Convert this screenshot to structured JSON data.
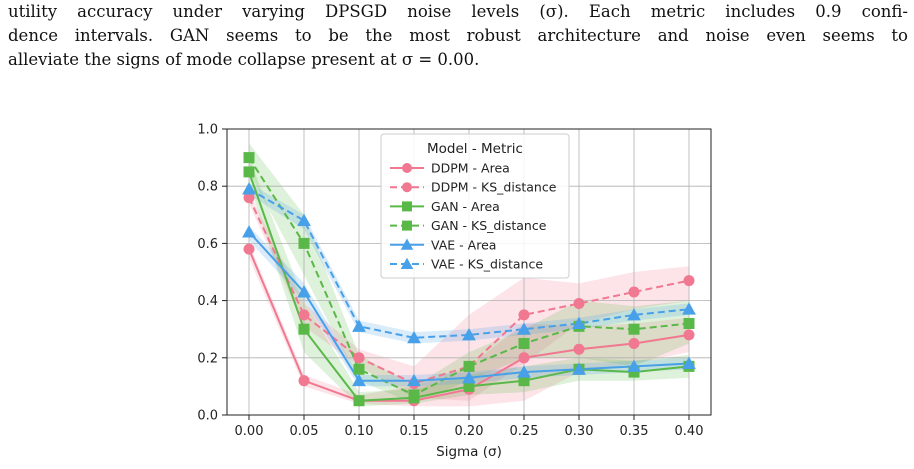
{
  "caption": {
    "line1": "utility accuracy under varying DPSGD noise levels (σ). Each metric includes 0.9 confi-",
    "line2": "dence intervals. GAN seems to be the most robust architecture and noise even seems to",
    "line3": "alleviate the signs of mode collapse present at σ = 0.00."
  },
  "chart_data": {
    "type": "line",
    "xlabel": "Sigma (σ)",
    "ylabel": "",
    "x": [
      0.0,
      0.05,
      0.1,
      0.15,
      0.2,
      0.25,
      0.3,
      0.35,
      0.4
    ],
    "x_tick_labels": [
      "0.00",
      "0.05",
      "0.10",
      "0.15",
      "0.20",
      "0.25",
      "0.30",
      "0.35",
      "0.40"
    ],
    "xlim": [
      -0.02,
      0.42
    ],
    "ylim": [
      0.0,
      1.0
    ],
    "y_ticks": [
      0.0,
      0.2,
      0.4,
      0.6,
      0.8,
      1.0
    ],
    "y_tick_labels": [
      "0.0",
      "0.2",
      "0.4",
      "0.6",
      "0.8",
      "1.0"
    ],
    "grid": true,
    "legend": {
      "title": "Model - Metric",
      "placement": "top-center"
    },
    "series": [
      {
        "name": "DDPM - Area",
        "color": "#f07890",
        "dash": "solid",
        "marker": "circle",
        "values": [
          0.58,
          0.12,
          0.05,
          0.05,
          0.09,
          0.2,
          0.23,
          0.25,
          0.28
        ],
        "ci_low": [
          0.55,
          0.1,
          0.04,
          0.03,
          0.03,
          0.05,
          0.15,
          0.18,
          0.22
        ],
        "ci_high": [
          0.6,
          0.14,
          0.07,
          0.1,
          0.17,
          0.32,
          0.31,
          0.32,
          0.34
        ]
      },
      {
        "name": "DDPM - KS_distance",
        "color": "#f07890",
        "dash": "dashed",
        "marker": "circle",
        "values": [
          0.76,
          0.35,
          0.2,
          0.11,
          0.17,
          0.35,
          0.39,
          0.43,
          0.47
        ],
        "ci_low": [
          0.74,
          0.31,
          0.17,
          0.06,
          0.05,
          0.18,
          0.32,
          0.37,
          0.4
        ],
        "ci_high": [
          0.78,
          0.39,
          0.23,
          0.17,
          0.35,
          0.48,
          0.46,
          0.5,
          0.52
        ]
      },
      {
        "name": "GAN - Area",
        "color": "#5ab848",
        "dash": "solid",
        "marker": "square",
        "values": [
          0.85,
          0.3,
          0.05,
          0.06,
          0.1,
          0.12,
          0.16,
          0.15,
          0.17
        ],
        "ci_low": [
          0.81,
          0.22,
          0.03,
          0.04,
          0.07,
          0.08,
          0.12,
          0.12,
          0.13
        ],
        "ci_high": [
          0.9,
          0.4,
          0.08,
          0.09,
          0.14,
          0.17,
          0.2,
          0.19,
          0.21
        ]
      },
      {
        "name": "GAN - KS_distance",
        "color": "#5ab848",
        "dash": "dashed",
        "marker": "square",
        "values": [
          0.9,
          0.6,
          0.16,
          0.07,
          0.17,
          0.25,
          0.31,
          0.3,
          0.32
        ],
        "ci_low": [
          0.85,
          0.49,
          0.12,
          0.04,
          0.12,
          0.2,
          0.2,
          0.17,
          0.25
        ],
        "ci_high": [
          0.95,
          0.7,
          0.21,
          0.1,
          0.22,
          0.3,
          0.4,
          0.38,
          0.4
        ]
      },
      {
        "name": "VAE - Area",
        "color": "#48a0e8",
        "dash": "solid",
        "marker": "triangle",
        "values": [
          0.64,
          0.43,
          0.12,
          0.12,
          0.13,
          0.15,
          0.16,
          0.17,
          0.18
        ],
        "ci_low": [
          0.61,
          0.4,
          0.1,
          0.1,
          0.11,
          0.13,
          0.14,
          0.15,
          0.16
        ],
        "ci_high": [
          0.66,
          0.46,
          0.14,
          0.14,
          0.15,
          0.17,
          0.18,
          0.19,
          0.2
        ]
      },
      {
        "name": "VAE - KS_distance",
        "color": "#48a0e8",
        "dash": "dashed",
        "marker": "triangle",
        "values": [
          0.79,
          0.68,
          0.31,
          0.27,
          0.28,
          0.3,
          0.32,
          0.35,
          0.37
        ],
        "ci_low": [
          0.77,
          0.65,
          0.29,
          0.25,
          0.26,
          0.28,
          0.3,
          0.33,
          0.35
        ],
        "ci_high": [
          0.81,
          0.7,
          0.33,
          0.29,
          0.3,
          0.32,
          0.34,
          0.37,
          0.39
        ]
      }
    ]
  }
}
